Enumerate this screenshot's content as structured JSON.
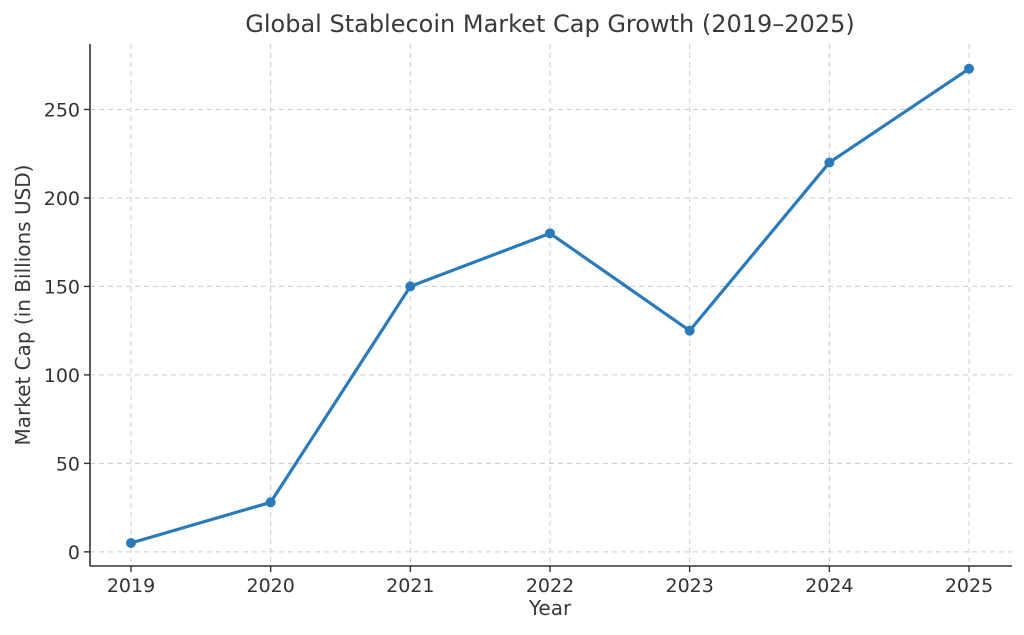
{
  "chart_data": {
    "type": "line",
    "title": "Global Stablecoin Market Cap Growth (2019–2025)",
    "xlabel": "Year",
    "ylabel": "Market Cap (in Billions USD)",
    "x": [
      "2019",
      "2020",
      "2021",
      "2022",
      "2023",
      "2024",
      "2025"
    ],
    "yticks": [
      "0",
      "50",
      "100",
      "150",
      "200",
      "250"
    ],
    "ylim": [
      -8,
      287
    ],
    "grid": true,
    "series": [
      {
        "values": [
          5,
          28,
          150,
          180,
          125,
          220,
          273
        ],
        "color": "#2b7bba",
        "marker": "circle"
      }
    ]
  }
}
